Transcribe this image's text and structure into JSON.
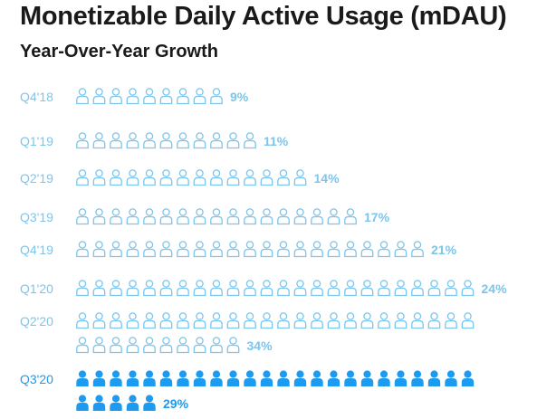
{
  "title": "Monetizable Daily Active Usage (mDAU)",
  "subtitle": "Year-Over-Year Growth",
  "colors": {
    "outline": "#7cc5ec",
    "highlight": "#1d9bf0",
    "text": "#1a1a1a"
  },
  "chart_data": {
    "type": "bar",
    "categories": [
      "Q4'18",
      "Q1'19",
      "Q2'19",
      "Q3'19",
      "Q4'19",
      "Q1'20",
      "Q2'20",
      "Q3'20"
    ],
    "values": [
      9,
      11,
      14,
      17,
      21,
      24,
      34,
      29
    ],
    "value_labels": [
      "9%",
      "11%",
      "14%",
      "17%",
      "21%",
      "24%",
      "34%",
      "29%"
    ],
    "highlighted": [
      false,
      false,
      false,
      false,
      false,
      false,
      false,
      true
    ]
  }
}
